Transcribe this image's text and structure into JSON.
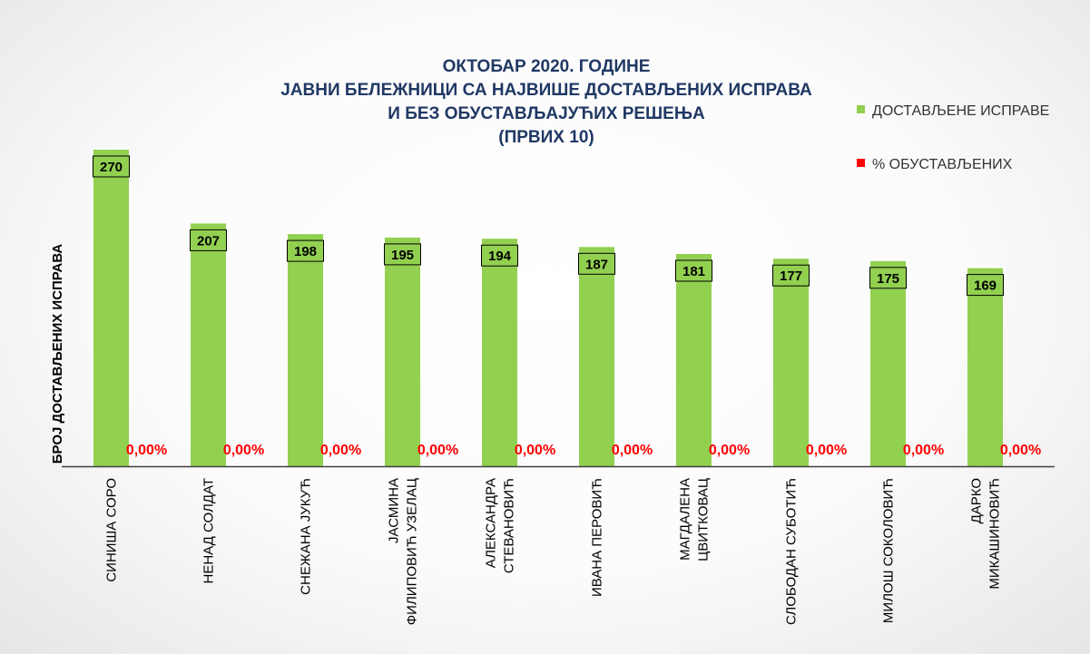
{
  "chart_data": {
    "type": "bar",
    "title_lines": [
      "ОКТОБАР 2020. ГОДИНЕ",
      "ЈАВНИ БЕЛЕЖНИЦИ СА НАЈВИШЕ ДОСТАВЉЕНИХ ИСПРАВА",
      "И БЕЗ ОБУСТАВЉАЈУЋИХ РЕШЕЊА",
      "(ПРВИХ 10)"
    ],
    "ylabel": "БРОЈ ДОСТАВЉЕНИХ ИСПРАВА",
    "legend_position": "right",
    "grid": false,
    "ylim": [
      0,
      270
    ],
    "categories": [
      [
        "СИНИША СОРО"
      ],
      [
        "НЕНАД СОЛДАТ"
      ],
      [
        "СНЕЖАНА ЈУКУЋ"
      ],
      [
        "ЈАСМИНА",
        "ФИЛИПОВИЋ УЗЕЛАЦ"
      ],
      [
        "АЛЕКСАНДРА",
        "СТЕВАНОВИЋ"
      ],
      [
        "ИВАНА ПЕРОВИЋ"
      ],
      [
        "МАГДАЛЕНА",
        "ЦВИТКОВАЦ"
      ],
      [
        "СЛОБОДАН СУБОТИЋ"
      ],
      [
        "МИЛОШ СОКОЛОВИЋ"
      ],
      [
        "ДАРКО",
        "МИКАШИНОВИЋ"
      ]
    ],
    "series": [
      {
        "name": "ДОСТАВЉЕНЕ ИСПРАВЕ",
        "color": "#92d050",
        "values": [
          270,
          207,
          198,
          195,
          194,
          187,
          181,
          177,
          175,
          169
        ],
        "labels": [
          "270",
          "207",
          "198",
          "195",
          "194",
          "187",
          "181",
          "177",
          "175",
          "169"
        ]
      },
      {
        "name": "% ОБУСТАВЉЕНИХ",
        "color": "#ff0000",
        "values": [
          0,
          0,
          0,
          0,
          0,
          0,
          0,
          0,
          0,
          0
        ],
        "labels": [
          "0,00%",
          "0,00%",
          "0,00%",
          "0,00%",
          "0,00%",
          "0,00%",
          "0,00%",
          "0,00%",
          "0,00%",
          "0,00%"
        ]
      }
    ]
  }
}
